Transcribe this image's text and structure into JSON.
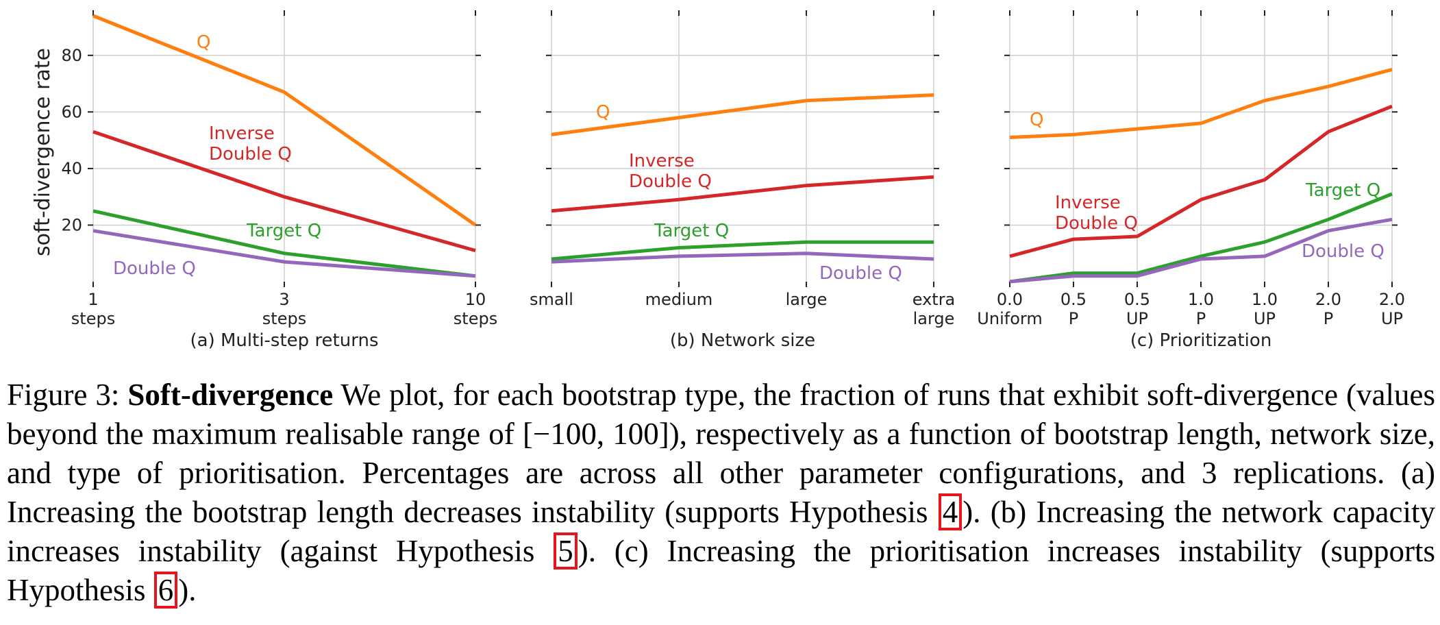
{
  "colors": {
    "Q": "#ff7f0e",
    "Inverse Double Q": "#d62728",
    "Target Q": "#2ca02c",
    "Double Q": "#9467bd",
    "grid": "#cfcfcf",
    "axis": "#222222"
  },
  "chart_data": [
    {
      "type": "line",
      "title": "(a) Multi-step returns",
      "ylabel": "soft-divergence rate",
      "xlabel": "",
      "ylim": [
        0,
        94
      ],
      "yticks": [
        20,
        40,
        60,
        80
      ],
      "grid": true,
      "categories": [
        [
          "1",
          "steps"
        ],
        [
          "3",
          "steps"
        ],
        [
          "10",
          "steps"
        ]
      ],
      "series": [
        {
          "name": "Q",
          "values": [
            94,
            67,
            20
          ]
        },
        {
          "name": "Inverse Double Q",
          "values": [
            53,
            30,
            11
          ]
        },
        {
          "name": "Target Q",
          "values": [
            25,
            10,
            2
          ]
        },
        {
          "name": "Double Q",
          "values": [
            18,
            7,
            2
          ]
        }
      ],
      "labels": [
        {
          "series": "Q",
          "lines": [
            "Q"
          ]
        },
        {
          "series": "Inverse Double Q",
          "lines": [
            "Inverse",
            "Double Q"
          ]
        },
        {
          "series": "Target Q",
          "lines": [
            "Target Q"
          ]
        },
        {
          "series": "Double Q",
          "lines": [
            "Double Q"
          ]
        }
      ]
    },
    {
      "type": "line",
      "title": "(b) Network size",
      "xlabel": "",
      "ylim": [
        0,
        94
      ],
      "yticks": [
        20,
        40,
        60,
        80
      ],
      "grid": true,
      "categories": [
        [
          "small"
        ],
        [
          "medium"
        ],
        [
          "large"
        ],
        [
          "extra",
          "large"
        ]
      ],
      "series": [
        {
          "name": "Q",
          "values": [
            52,
            58,
            64,
            66
          ]
        },
        {
          "name": "Inverse Double Q",
          "values": [
            25,
            29,
            34,
            37
          ]
        },
        {
          "name": "Target Q",
          "values": [
            8,
            12,
            14,
            14
          ]
        },
        {
          "name": "Double Q",
          "values": [
            7,
            9,
            10,
            8
          ]
        }
      ],
      "labels": [
        {
          "series": "Q",
          "lines": [
            "Q"
          ]
        },
        {
          "series": "Inverse Double Q",
          "lines": [
            "Inverse",
            "Double Q"
          ]
        },
        {
          "series": "Target Q",
          "lines": [
            "Target Q"
          ]
        },
        {
          "series": "Double Q",
          "lines": [
            "Double Q"
          ]
        }
      ]
    },
    {
      "type": "line",
      "title": "(c) Prioritization",
      "xlabel": "",
      "ylim": [
        0,
        94
      ],
      "yticks": [
        20,
        40,
        60,
        80
      ],
      "grid": true,
      "categories": [
        [
          "0.0",
          "Uniform"
        ],
        [
          "0.5",
          "P"
        ],
        [
          "0.5",
          "UP"
        ],
        [
          "1.0",
          "P"
        ],
        [
          "1.0",
          "UP"
        ],
        [
          "2.0",
          "P"
        ],
        [
          "2.0",
          "UP"
        ]
      ],
      "series": [
        {
          "name": "Q",
          "values": [
            51,
            52,
            54,
            56,
            64,
            69,
            75
          ]
        },
        {
          "name": "Inverse Double Q",
          "values": [
            9,
            15,
            16,
            29,
            36,
            53,
            62
          ]
        },
        {
          "name": "Target Q",
          "values": [
            0,
            3,
            3,
            9,
            14,
            22,
            31
          ]
        },
        {
          "name": "Double Q",
          "values": [
            0,
            2,
            2,
            8,
            9,
            18,
            22
          ]
        }
      ],
      "labels": [
        {
          "series": "Q",
          "lines": [
            "Q"
          ]
        },
        {
          "series": "Inverse Double Q",
          "lines": [
            "Inverse",
            "Double Q"
          ]
        },
        {
          "series": "Target Q",
          "lines": [
            "Target Q"
          ]
        },
        {
          "series": "Double Q",
          "lines": [
            "Double Q"
          ]
        }
      ]
    }
  ],
  "caption": {
    "label": "Figure 3:",
    "bold": "Soft-divergence",
    "part1": " We plot, for each bootstrap type, the fraction of runs that exhibit soft-divergence (values beyond the maximum realisable range of [−100, 100]), respectively as a function of bootstrap length, network size, and type of prioritisation. Percentages are across all other parameter configurations, and 3 replications. (a) Increasing the bootstrap length decreases instability (supports Hypothesis ",
    "ref1": "4",
    "part2": "). (b) Increasing the network capacity increases instability (against Hypothesis ",
    "ref2": "5",
    "part3": "). (c) Increasing the prioritisation increases instability (supports Hypothesis ",
    "ref3": "6",
    "part4": ")."
  }
}
